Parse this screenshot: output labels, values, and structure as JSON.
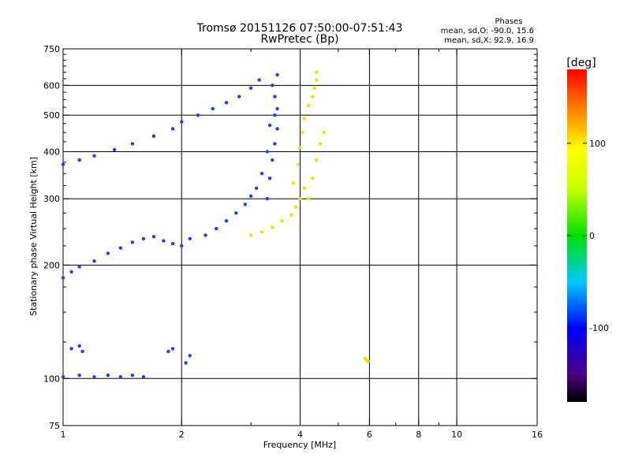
{
  "chart_data": {
    "type": "scatter",
    "title": "Tromsø 20151126 07:50:00-07:51:43",
    "subtitle": "RwPretec (Bp)",
    "xlabel": "Frequency [MHz]",
    "ylabel": "Stationary phase Virtual Height [km]",
    "x_scale": "log",
    "y_scale": "log",
    "xlim": [
      1,
      16
    ],
    "ylim": [
      75,
      750
    ],
    "x_ticks": [
      1,
      2,
      4,
      6,
      8,
      10,
      16
    ],
    "x_minor_ticks": [
      3,
      5,
      7,
      9
    ],
    "y_ticks": [
      75,
      100,
      200,
      300,
      400,
      500,
      600,
      750
    ],
    "y_minor_ticks": [
      125,
      150,
      175,
      225,
      250,
      275,
      325,
      350,
      375,
      425,
      450,
      475,
      525,
      550,
      575,
      625,
      650,
      675,
      700,
      725
    ],
    "x_grid": [
      2,
      4,
      6,
      8,
      10
    ],
    "y_grid": [
      100,
      200,
      300,
      400,
      500,
      600
    ],
    "phase_stats": {
      "heading": "Phases",
      "lines": [
        "mean, sd,O: -90.0, 15.6",
        "mean, sd,X:  92.9, 16.9"
      ]
    },
    "colorbar": {
      "label": "[deg]",
      "range": [
        -180,
        180
      ],
      "ticks": [
        100,
        0,
        -100
      ],
      "tick_labels": [
        "100",
        "0",
        "-100"
      ]
    },
    "series": [
      {
        "name": "O",
        "phase_deg": -100,
        "color": "#1e3cff",
        "segments": [
          {
            "x": [
              1.0,
              1.1,
              1.2,
              1.35,
              1.5,
              1.7,
              1.9,
              2.0,
              2.2,
              2.4,
              2.6,
              2.8,
              3.0,
              3.15
            ],
            "y": [
              370,
              380,
              390,
              405,
              420,
              440,
              460,
              480,
              500,
              520,
              540,
              560,
              590,
              620
            ]
          },
          {
            "x": [
              1.0,
              1.05,
              1.1,
              1.2,
              1.3,
              1.4,
              1.5,
              1.6,
              1.7,
              1.8,
              1.9,
              2.0,
              2.1
            ],
            "y": [
              185,
              192,
              198,
              205,
              215,
              222,
              230,
              235,
              238,
              232,
              228,
              225,
              235
            ]
          },
          {
            "x": [
              2.3,
              2.45,
              2.6,
              2.75,
              2.9,
              3.0,
              3.1,
              3.2,
              3.3,
              3.35
            ],
            "y": [
              240,
              250,
              262,
              275,
              290,
              305,
              320,
              350,
              400,
              470
            ]
          },
          {
            "x": [
              3.3,
              3.35,
              3.4,
              3.45,
              3.5,
              3.5,
              3.45,
              3.4,
              3.5,
              3.45
            ],
            "y": [
              300,
              340,
              380,
              420,
              460,
              520,
              560,
              600,
              640,
              500
            ]
          },
          {
            "x": [
              1.0,
              1.1,
              1.2,
              1.3,
              1.4,
              1.5,
              1.6
            ],
            "y": [
              101,
              102,
              101,
              102,
              101,
              102,
              101
            ]
          },
          {
            "x": [
              1.05,
              1.1,
              1.12,
              1.85,
              1.9,
              2.05,
              2.1
            ],
            "y": [
              120,
              122,
              118,
              118,
              120,
              110,
              115
            ]
          }
        ]
      },
      {
        "name": "X",
        "phase_deg": 93,
        "color": "#f0e000",
        "segments": [
          {
            "x": [
              3.0,
              3.2,
              3.4,
              3.6,
              3.8,
              3.9,
              4.0,
              4.1
            ],
            "y": [
              240,
              245,
              252,
              262,
              272,
              285,
              300,
              320
            ]
          },
          {
            "x": [
              3.85,
              3.95,
              4.0,
              4.05,
              4.1,
              4.2,
              4.3,
              4.35,
              4.4,
              4.4
            ],
            "y": [
              330,
              370,
              410,
              450,
              490,
              530,
              560,
              590,
              620,
              650
            ]
          },
          {
            "x": [
              4.2,
              4.3,
              4.4,
              4.5,
              4.6
            ],
            "y": [
              300,
              340,
              380,
              420,
              450
            ]
          },
          {
            "x": [
              5.85,
              5.9,
              5.95
            ],
            "y": [
              113,
              112,
              111
            ]
          }
        ]
      }
    ]
  }
}
